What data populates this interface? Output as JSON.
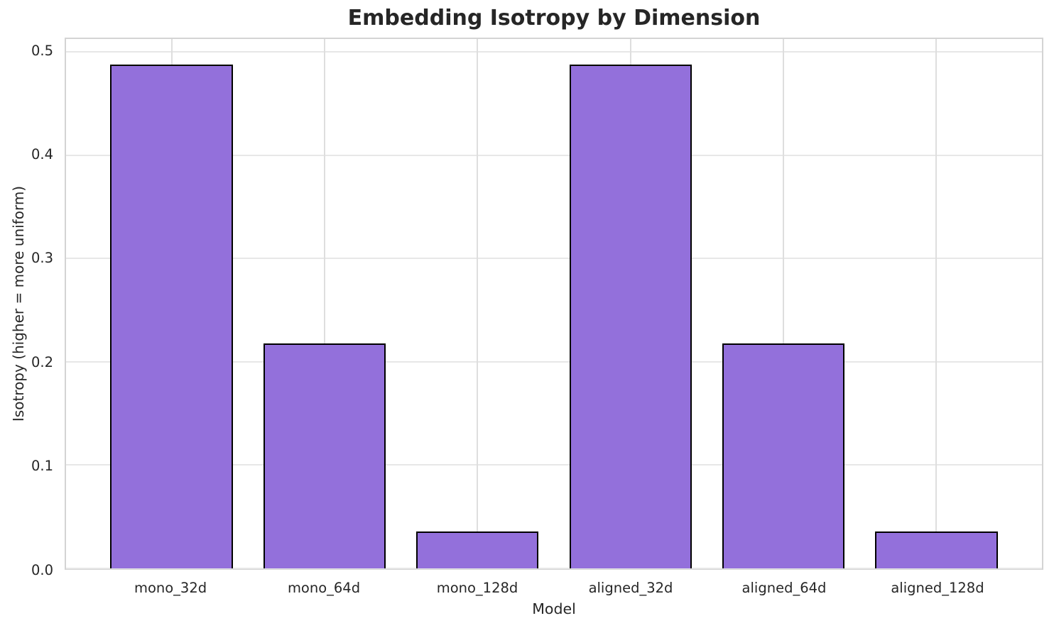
{
  "chart_data": {
    "type": "bar",
    "title": "Embedding Isotropy by Dimension",
    "xlabel": "Model",
    "ylabel": "Isotropy (higher = more uniform)",
    "categories": [
      "mono_32d",
      "mono_64d",
      "mono_128d",
      "aligned_32d",
      "aligned_64d",
      "aligned_128d"
    ],
    "values": [
      0.488,
      0.218,
      0.036,
      0.488,
      0.218,
      0.036
    ],
    "yticks": [
      0.0,
      0.1,
      0.2,
      0.3,
      0.4,
      0.5
    ],
    "ytick_labels": [
      "0.0",
      "0.1",
      "0.2",
      "0.3",
      "0.4",
      "0.5"
    ],
    "ylim": [
      0,
      0.5124
    ],
    "xlim": [
      -0.69,
      5.69
    ],
    "bar_width": 0.8,
    "grid": true,
    "legend_position": "none",
    "colors": {
      "bar_fill": "#9370DB",
      "bar_edge": "#000000",
      "grid_horizontal": "#e7e7e7",
      "grid_vertical": "#dedede",
      "spine": "#d4d4d4",
      "text": "#262626",
      "background": "#ffffff"
    }
  }
}
